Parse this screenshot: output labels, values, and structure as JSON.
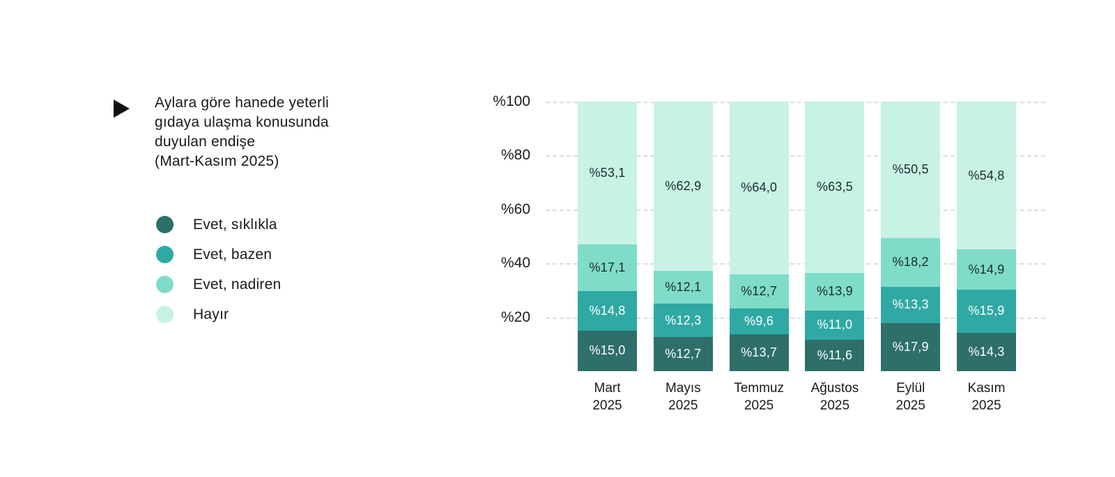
{
  "panel": {
    "bullet_icon": "right-triangle",
    "title_lines": [
      "Aylara göre hanede yeterli",
      "gıdaya ulaşma konusunda",
      "duyulan endişe",
      "(Mart-Kasım 2025)"
    ]
  },
  "legend": {
    "items": [
      {
        "label": "Evet, sıklıkla",
        "color": "#2E6F6A"
      },
      {
        "label": "Evet, bazen",
        "color": "#2FA9A3"
      },
      {
        "label": "Evet, nadiren",
        "color": "#7FDCC8"
      },
      {
        "label": "Hayır",
        "color": "#C7F2E5"
      }
    ]
  },
  "chart_data": {
    "type": "bar",
    "stacked": true,
    "title": "Aylara göre hanede yeterli gıdaya ulaşma konusunda duyulan endişe (Mart-Kasım 2025)",
    "categories": [
      "Mart 2025",
      "Mayıs 2025",
      "Temmuz 2025",
      "Ağustos 2025",
      "Eylül 2025",
      "Kasım 2025"
    ],
    "series": [
      {
        "name": "Evet, sıklıkla",
        "color": "#2E6F6A",
        "label_color": "#FFFFFF",
        "values": [
          15.0,
          12.7,
          13.7,
          11.6,
          17.9,
          14.3
        ],
        "labels": [
          "%15,0",
          "%12,7",
          "%13,7",
          "%11,6",
          "%17,9",
          "%14,3"
        ]
      },
      {
        "name": "Evet, bazen",
        "color": "#2FA9A3",
        "label_color": "#FFFFFF",
        "values": [
          14.8,
          12.3,
          9.6,
          11.0,
          13.3,
          15.9
        ],
        "labels": [
          "%14,8",
          "%12,3",
          "%9,6",
          "%11,0",
          "%13,3",
          "%15,9"
        ]
      },
      {
        "name": "Evet, nadiren",
        "color": "#7FDCC8",
        "label_color": "#1A2B29",
        "values": [
          17.1,
          12.1,
          12.7,
          13.9,
          18.2,
          14.9
        ],
        "labels": [
          "%17,1",
          "%12,1",
          "%12,7",
          "%13,9",
          "%18,2",
          "%14,9"
        ]
      },
      {
        "name": "Hayır",
        "color": "#C7F2E5",
        "label_color": "#1A2B29",
        "values": [
          53.1,
          62.9,
          64.0,
          63.5,
          50.5,
          54.8
        ],
        "labels": [
          "%53,1",
          "%62,9",
          "%64,0",
          "%63,5",
          "%50,5",
          "%54,8"
        ]
      }
    ],
    "y_axis": {
      "ticks": [
        "%20",
        "%40",
        "%60",
        "%80",
        "%100"
      ],
      "tick_values": [
        20,
        40,
        60,
        80,
        100
      ],
      "ylim": [
        0,
        100
      ],
      "grid": "dashed"
    },
    "legend_position": "left",
    "value_format": "percent-comma-decimal"
  }
}
